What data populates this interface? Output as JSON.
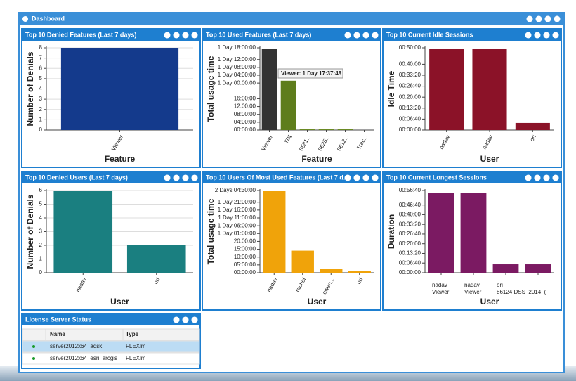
{
  "window": {
    "title": "Dashboard"
  },
  "panels": [
    {
      "title": "Top 10 Denied Features (Last 7 days)",
      "chart_data": {
        "type": "bar",
        "y_label": "Number of Denials",
        "x_label": "Feature",
        "categories": [
          "Viewer"
        ],
        "values": [
          8
        ],
        "color": "#143a8c",
        "ylim": [
          0,
          8
        ],
        "yticks": [
          0,
          1,
          2,
          3,
          4,
          5,
          6,
          7,
          8
        ],
        "grid": true
      }
    },
    {
      "title": "Top 10 Used Features (Last 7 days)",
      "chart_data": {
        "type": "bar",
        "y_label": "Total usage time",
        "x_label": "Feature",
        "categories": [
          "Viewer",
          "TIN",
          "8581...",
          "8625...",
          "8612...",
          "Trac..."
        ],
        "values": [
          41.63,
          25.2,
          0.7,
          0.4,
          0.4,
          0
        ],
        "colors": [
          "#333333",
          "#5e7d1c",
          "#6a8a24",
          "#6a8a24",
          "#6a8a24",
          "#6a8a24"
        ],
        "ylim": [
          0,
          42
        ],
        "yticks": [
          {
            "value": 0,
            "label": "00:00:00"
          },
          {
            "value": 4,
            "label": "04:00:00"
          },
          {
            "value": 8,
            "label": "08:00:00"
          },
          {
            "value": 12,
            "label": "12:00:00"
          },
          {
            "value": 16,
            "label": "16:00:00"
          },
          {
            "value": 24,
            "label": "1 Day 00:00:00"
          },
          {
            "value": 28,
            "label": "1 Day 04:00:00"
          },
          {
            "value": 32,
            "label": "1 Day 08:00:00"
          },
          {
            "value": 36,
            "label": "1 Day 12:00:00"
          },
          {
            "value": 42,
            "label": "1 Day 18:00:00"
          }
        ],
        "grid": false,
        "tooltip": "Viewer: 1 Day 17:37:48"
      }
    },
    {
      "title": "Top 10 Current Idle Sessions",
      "chart_data": {
        "type": "bar",
        "y_label": "Idle Time",
        "x_label": "User",
        "categories": [
          "nadav",
          "nadav",
          "ori"
        ],
        "values": [
          49.3,
          49.3,
          4.3
        ],
        "color": "#8b1228",
        "ylim": [
          0,
          50
        ],
        "yticks": [
          {
            "value": 0,
            "label": "00:00:00"
          },
          {
            "value": 6.67,
            "label": "00:06:40"
          },
          {
            "value": 13.33,
            "label": "00:13:20"
          },
          {
            "value": 20,
            "label": "00:20:00"
          },
          {
            "value": 26.67,
            "label": "00:26:40"
          },
          {
            "value": 33.33,
            "label": "00:33:20"
          },
          {
            "value": 40,
            "label": "00:40:00"
          },
          {
            "value": 50,
            "label": "00:50:00"
          }
        ],
        "grid": false
      }
    },
    {
      "title": "Top 10 Denied Users (Last 7 days)",
      "chart_data": {
        "type": "bar",
        "y_label": "Number of Denials",
        "x_label": "User",
        "categories": [
          "nadav",
          "ori"
        ],
        "values": [
          6,
          2
        ],
        "color": "#1a7f80",
        "ylim": [
          0,
          6
        ],
        "yticks": [
          0,
          1,
          2,
          3,
          4,
          5,
          6
        ],
        "grid": true
      }
    },
    {
      "title": "Top 10 Users Of Most Used Features (Last 7 d...",
      "chart_data": {
        "type": "bar",
        "y_label": "Total usage time",
        "x_label": "User",
        "categories": [
          "nadav",
          "rachel",
          "owen...",
          "ori"
        ],
        "values": [
          52.3,
          14.1,
          2.3,
          0.9
        ],
        "color": "#f0a30a",
        "ylim": [
          0,
          52.5
        ],
        "yticks": [
          {
            "value": 0,
            "label": "00:00:00"
          },
          {
            "value": 5,
            "label": "05:00:00"
          },
          {
            "value": 10,
            "label": "10:00:00"
          },
          {
            "value": 15,
            "label": "15:00:00"
          },
          {
            "value": 20,
            "label": "20:00:00"
          },
          {
            "value": 25,
            "label": "1 Day 01:00:00"
          },
          {
            "value": 30,
            "label": "1 Day 06:00:00"
          },
          {
            "value": 35,
            "label": "1 Day 11:00:00"
          },
          {
            "value": 40,
            "label": "1 Day 16:00:00"
          },
          {
            "value": 45,
            "label": "1 Day 21:00:00"
          },
          {
            "value": 52.5,
            "label": "2 Days 04:30:00"
          }
        ],
        "grid": false
      }
    },
    {
      "title": "Top 10 Current Longest Sessions",
      "chart_data": {
        "type": "bar",
        "y_label": "Duration",
        "x_label": "User",
        "categories": [
          "nadav",
          "nadav",
          "ori",
          null
        ],
        "sub_labels": [
          "Viewer",
          "Viewer",
          "86124IDSS_2014_(",
          null
        ],
        "values": [
          54.8,
          54.8,
          5.8,
          5.8
        ],
        "color": "#7b1a62",
        "ylim": [
          0,
          56.67
        ],
        "yticks": [
          {
            "value": 0,
            "label": "00:00:00"
          },
          {
            "value": 6.67,
            "label": "00:06:40"
          },
          {
            "value": 13.33,
            "label": "00:13:20"
          },
          {
            "value": 20,
            "label": "00:20:00"
          },
          {
            "value": 26.67,
            "label": "00:26:40"
          },
          {
            "value": 33.33,
            "label": "00:33:20"
          },
          {
            "value": 40,
            "label": "00:40:00"
          },
          {
            "value": 46.67,
            "label": "00:46:40"
          },
          {
            "value": 56.67,
            "label": "00:56:40"
          }
        ],
        "grid": false
      }
    }
  ],
  "table": {
    "title": "License Server Status",
    "columns": [
      "Name",
      "Type"
    ],
    "rows": [
      [
        "server2012x64_adsk",
        "FLEXlm"
      ],
      [
        "server2012x64_esri_arcgis",
        "FLEXlm"
      ]
    ]
  }
}
